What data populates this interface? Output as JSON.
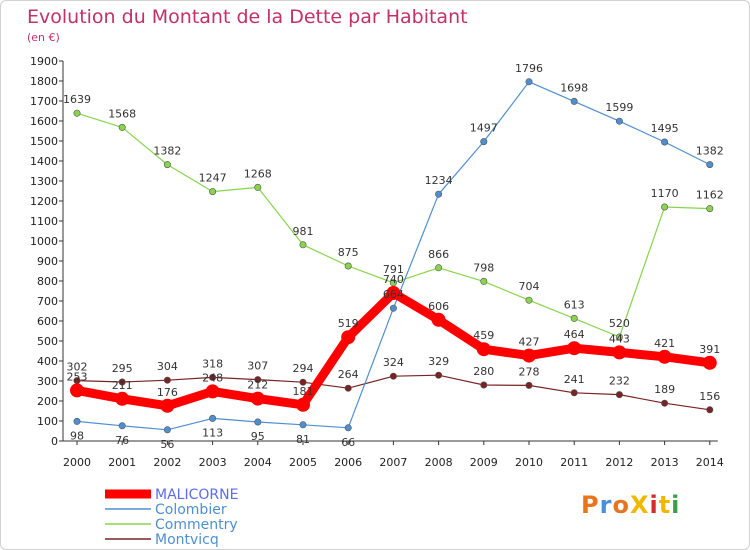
{
  "chart_data": {
    "type": "line",
    "title": "Evolution du Montant de la Dette par Habitant",
    "subtitle": "(en €)",
    "xlabel": "",
    "ylabel": "",
    "x": [
      "2000",
      "2001",
      "2002",
      "2003",
      "2004",
      "2005",
      "2006",
      "2007",
      "2008",
      "2009",
      "2010",
      "2011",
      "2012",
      "2013",
      "2014"
    ],
    "ylim": [
      0,
      1900
    ],
    "yticks": [
      0,
      100,
      200,
      300,
      400,
      500,
      600,
      700,
      800,
      900,
      1000,
      1100,
      1200,
      1300,
      1400,
      1500,
      1600,
      1700,
      1800,
      1900
    ],
    "grid": false,
    "legend_position": "bottom-left",
    "series": [
      {
        "name": "MALICORNE",
        "color": "#ff0000",
        "values": [
          253,
          211,
          176,
          248,
          212,
          181,
          519,
          740,
          606,
          459,
          427,
          464,
          443,
          421,
          391
        ]
      },
      {
        "name": "Colombier",
        "color": "#4f8fd0",
        "values": [
          98,
          76,
          56,
          113,
          95,
          81,
          66,
          664,
          1234,
          1497,
          1796,
          1698,
          1599,
          1495,
          1382
        ]
      },
      {
        "name": "Commentry",
        "color": "#88d44c",
        "values": [
          1639,
          1568,
          1382,
          1247,
          1268,
          981,
          875,
          791,
          866,
          798,
          704,
          613,
          520,
          1170,
          1162
        ]
      },
      {
        "name": "Montvicq",
        "color": "#7a2323",
        "values": [
          302,
          295,
          304,
          318,
          307,
          294,
          264,
          324,
          329,
          280,
          278,
          241,
          232,
          189,
          156
        ]
      }
    ]
  },
  "brand": {
    "text": "ProXiti",
    "colors": [
      "#e8741b",
      "#4a90d9",
      "#e8741b",
      "#f2b800",
      "#d92b2b",
      "#f2b800",
      "#3aa04c"
    ]
  }
}
